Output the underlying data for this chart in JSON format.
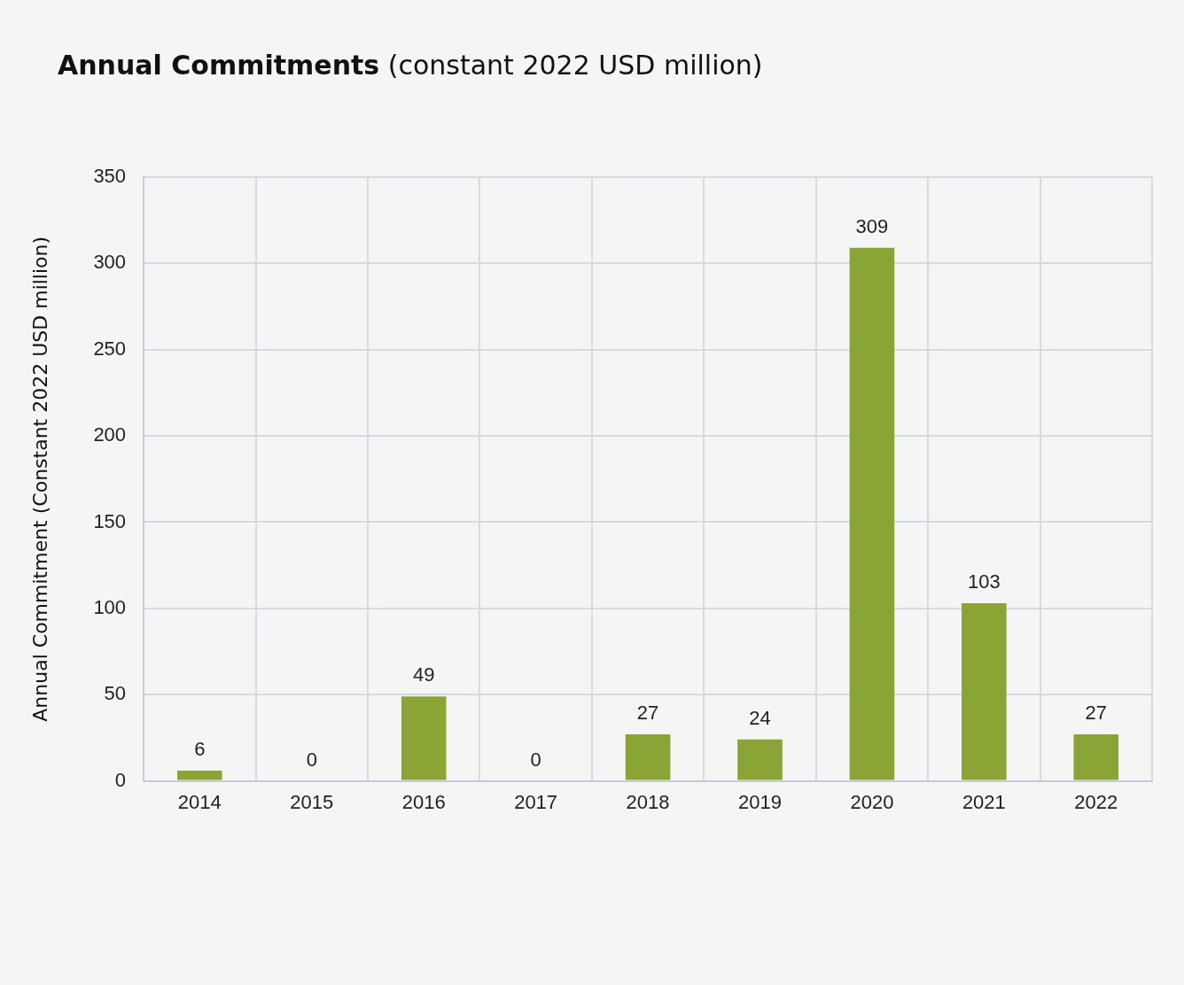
{
  "chart_data": {
    "type": "bar",
    "title": "Annual Commitments (constant 2022 USD million)",
    "ylabel": "Annual Commitment (Constant 2022 USD million)",
    "categories": [
      "2014",
      "2015",
      "2016",
      "2017",
      "2018",
      "2019",
      "2020",
      "2021",
      "2022"
    ],
    "values": [
      6,
      0,
      49,
      0,
      27,
      24,
      309,
      103,
      27
    ],
    "color": "#8aa536",
    "ylim": [
      0,
      350
    ],
    "yticks": [
      0,
      50,
      100,
      150,
      200,
      250,
      300,
      350
    ],
    "grid": true,
    "data_labels": true
  }
}
